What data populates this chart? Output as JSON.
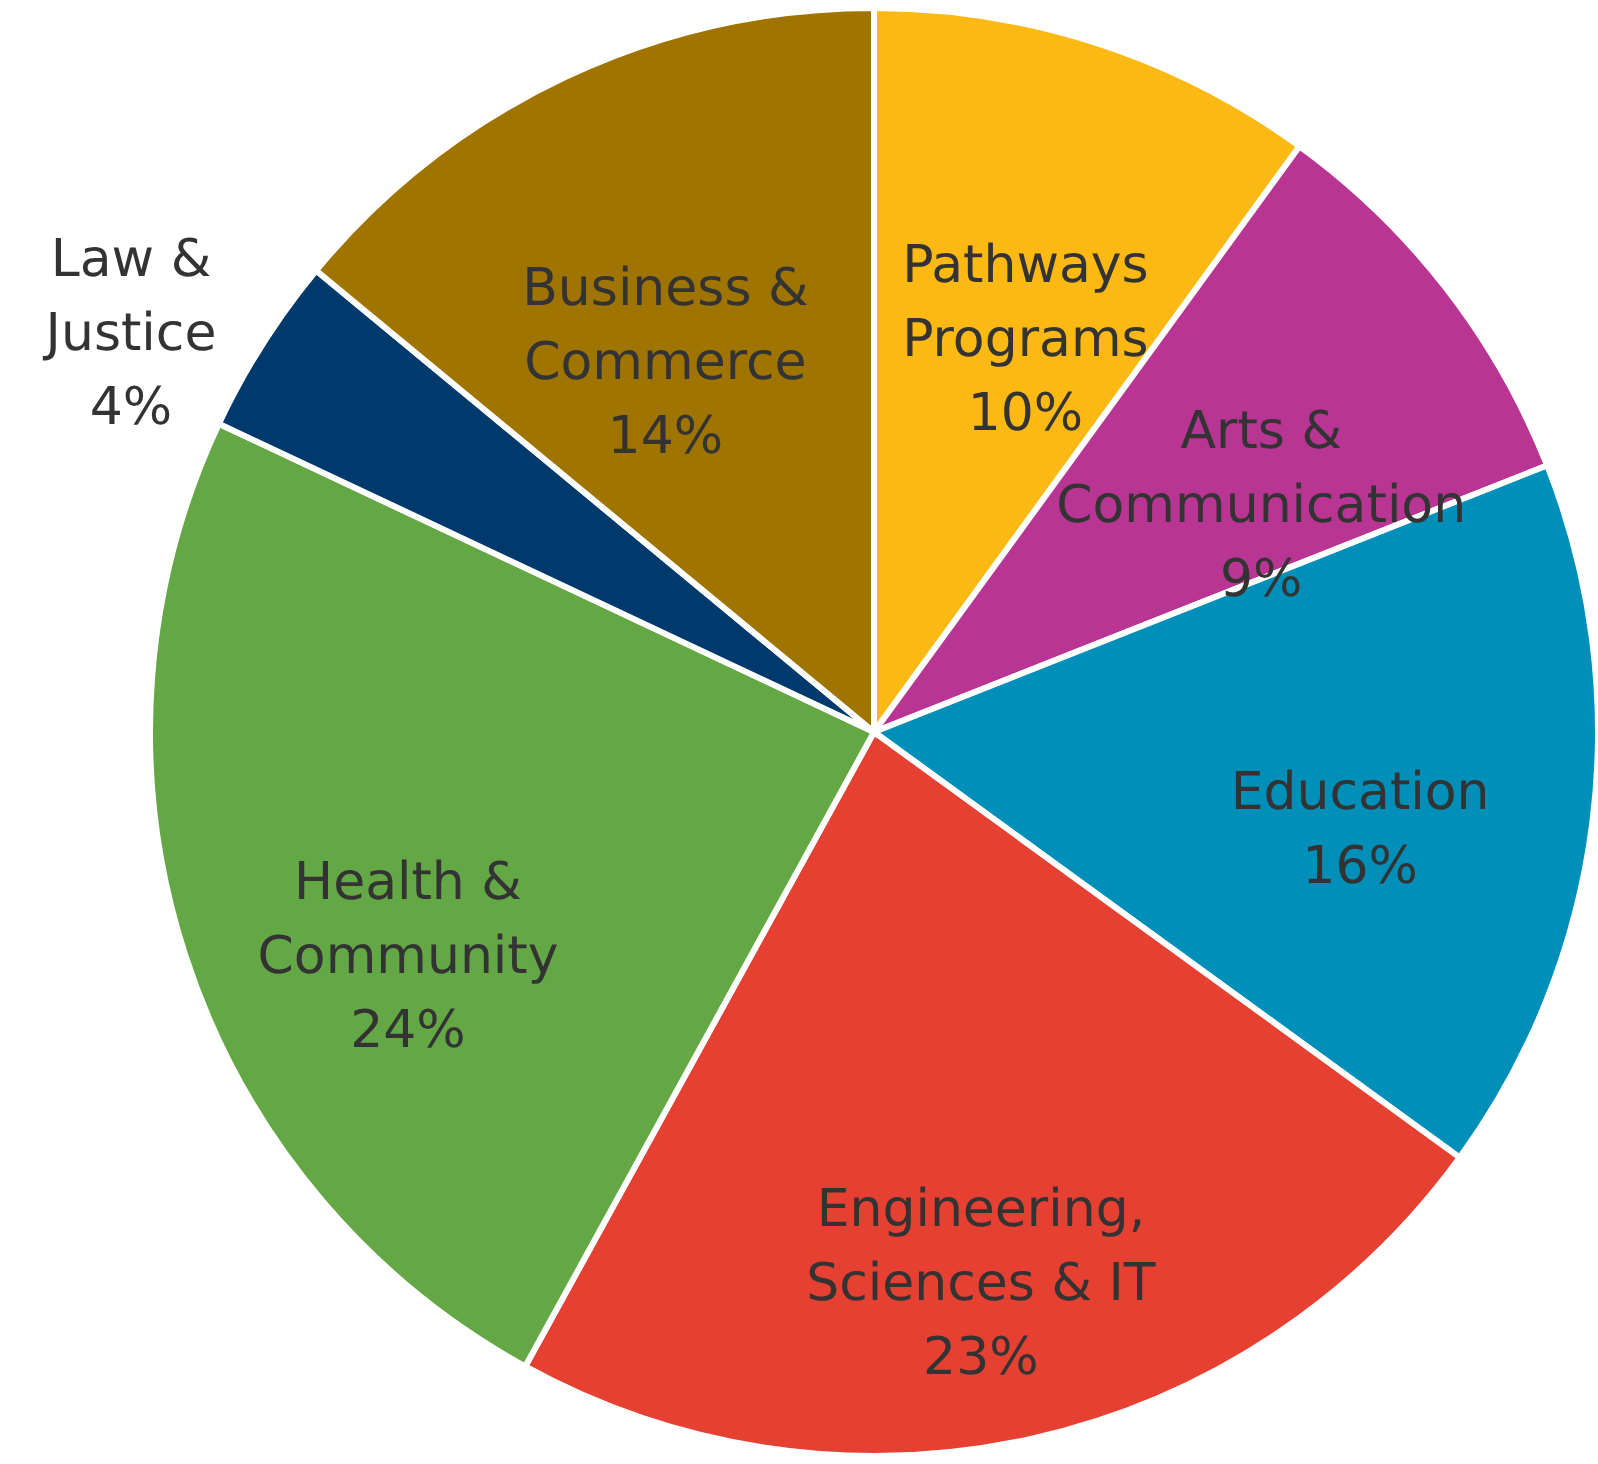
{
  "chart_data": {
    "type": "pie",
    "categories": [
      "Pathways Programs",
      "Arts & Communication",
      "Education",
      "Engineering, Sciences & IT",
      "Health & Community",
      "Law & Justice",
      "Business & Commerce"
    ],
    "values": [
      10,
      9,
      16,
      23,
      24,
      4,
      14
    ],
    "value_labels": [
      "10%",
      "9%",
      "16%",
      "23%",
      "24%",
      "4%",
      "14%"
    ],
    "colors": [
      "#fdb913",
      "#b83593",
      "#008fb8",
      "#e64032",
      "#63a844",
      "#003a6c",
      "#a07400"
    ]
  }
}
